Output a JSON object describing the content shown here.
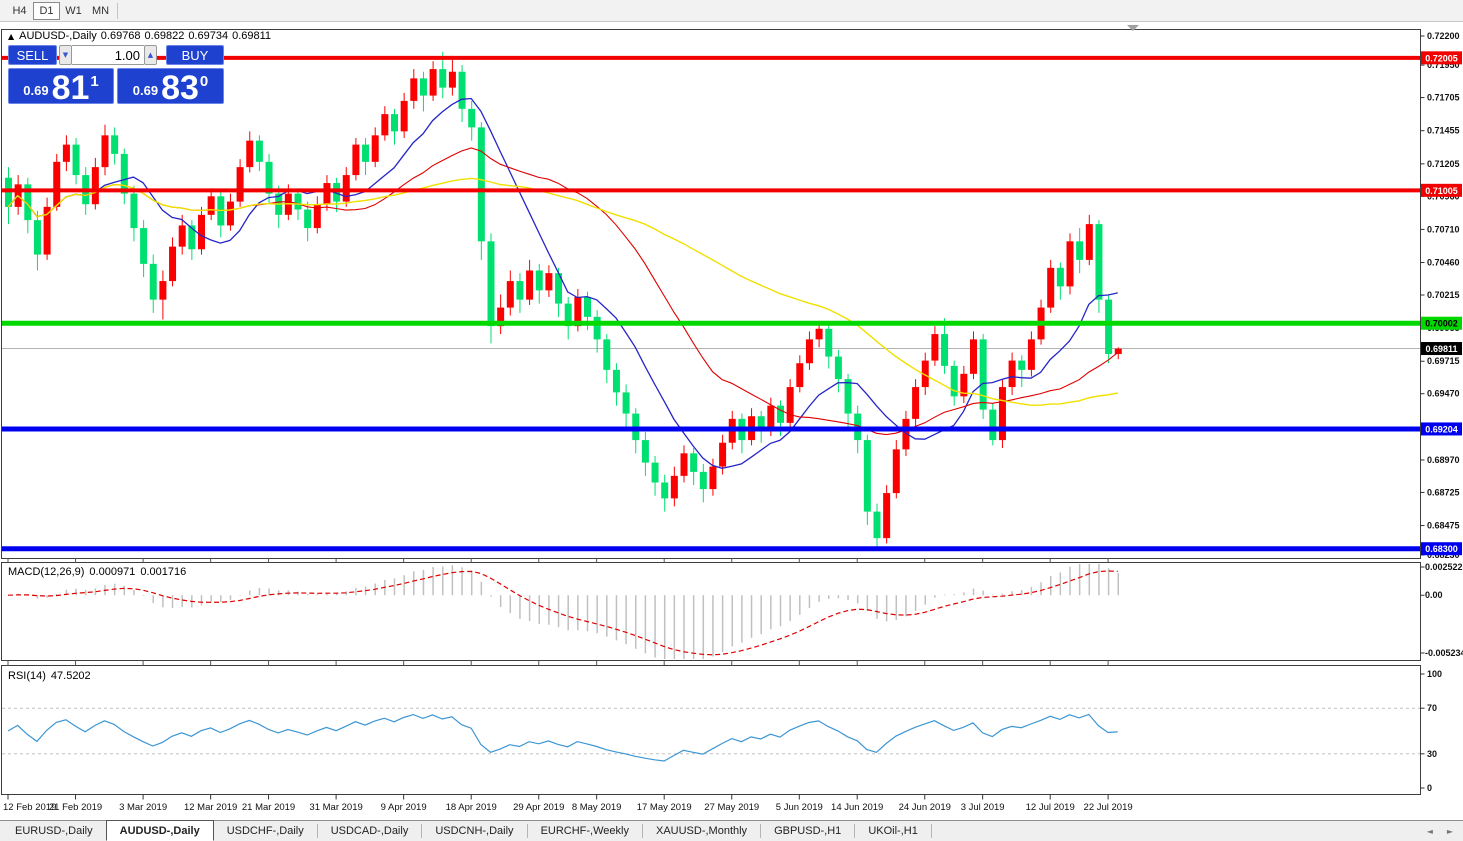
{
  "toolbar": {
    "timeframes": [
      {
        "label": "H4",
        "active": false
      },
      {
        "label": "D1",
        "active": true
      },
      {
        "label": "W1",
        "active": false
      },
      {
        "label": "MN",
        "active": false
      }
    ]
  },
  "icons": {
    "collapse": "▲",
    "spin_down": "▼",
    "spin_up": "▲",
    "tab_scroll_left": "◄",
    "tab_scroll_right": "►",
    "chart_shift_marker": "▼"
  },
  "chart_header": {
    "symbol": "AUDUSD-,Daily",
    "open": "0.69768",
    "high": "0.69822",
    "low": "0.69734",
    "close": "0.69811"
  },
  "trade_panel": {
    "sell_label": "SELL",
    "buy_label": "BUY",
    "volume": "1.00",
    "sell_price_small": "0.69",
    "sell_price_big": "81",
    "sell_price_sup": "1",
    "buy_price_small": "0.69",
    "buy_price_big": "83",
    "buy_price_sup": "0"
  },
  "price_axis": {
    "labels": [
      "0.72200",
      "0.71950",
      "0.71705",
      "0.71455",
      "0.71205",
      "0.70960",
      "0.70710",
      "0.70460",
      "0.70215",
      "0.69965",
      "0.69715",
      "0.69470",
      "0.68970",
      "0.68725",
      "0.68475",
      "0.68230"
    ],
    "badges": [
      {
        "text": "0.72005",
        "price": 0.72005,
        "type": "resistance-level",
        "bg": "#f20000",
        "fg": "#ffffff"
      },
      {
        "text": "0.71005",
        "price": 0.71005,
        "type": "resistance-level",
        "bg": "#f20000",
        "fg": "#ffffff"
      },
      {
        "text": "0.70002",
        "price": 0.70002,
        "type": "pivot-level",
        "bg": "#00d800",
        "fg": "#000000"
      },
      {
        "text": "0.69811",
        "price": 0.69811,
        "type": "current-price",
        "bg": "#000000",
        "fg": "#ffffff"
      },
      {
        "text": "0.69204",
        "price": 0.69204,
        "type": "support-level",
        "bg": "#0000f0",
        "fg": "#ffffff"
      },
      {
        "text": "0.68300",
        "price": 0.683,
        "type": "support-level",
        "bg": "#0000f0",
        "fg": "#ffffff"
      }
    ]
  },
  "levels": {
    "current_price": 0.69811,
    "horizontal_lines": [
      {
        "price": 0.72005,
        "color": "#f20000",
        "width": 4
      },
      {
        "price": 0.71005,
        "color": "#f20000",
        "width": 4
      },
      {
        "price": 0.70002,
        "color": "#00d800",
        "width": 5
      },
      {
        "price": 0.69204,
        "color": "#0000f0",
        "width": 5
      },
      {
        "price": 0.683,
        "color": "#0000f0",
        "width": 5
      }
    ]
  },
  "macd_panel": {
    "label": "MACD(12,26,9)",
    "main_value": "0.000971",
    "signal_value": "0.001716",
    "axis_labels": [
      "0.002522",
      "0.00",
      "-0.005234"
    ]
  },
  "rsi_panel": {
    "label": "RSI(14)",
    "value": "47.5202",
    "axis_labels": [
      "100",
      "70",
      "30",
      "0"
    ],
    "level_high": 70,
    "level_low": 30
  },
  "time_axis": {
    "labels": [
      "12 Feb 2019",
      "21 Feb 2019",
      "3 Mar 2019",
      "12 Mar 2019",
      "21 Mar 2019",
      "31 Mar 2019",
      "9 Apr 2019",
      "18 Apr 2019",
      "29 Apr 2019",
      "8 May 2019",
      "17 May 2019",
      "27 May 2019",
      "5 Jun 2019",
      "14 Jun 2019",
      "24 Jun 2019",
      "3 Jul 2019",
      "12 Jul 2019",
      "22 Jul 2019"
    ],
    "bar_index": [
      0,
      7,
      14,
      21,
      27,
      34,
      41,
      48,
      55,
      61,
      68,
      75,
      82,
      88,
      95,
      101,
      108,
      114
    ]
  },
  "tabs": {
    "items": [
      "EURUSD-,Daily",
      "AUDUSD-,Daily",
      "USDCHF-,Daily",
      "USDCAD-,Daily",
      "USDCNH-,Daily",
      "EURCHF-,Weekly",
      "XAUUSD-,Monthly",
      "GBPUSD-,H1",
      "UKOil-,H1"
    ],
    "active": "AUDUSD-,Daily"
  },
  "chart_data": {
    "type": "candlestick",
    "symbol": "AUDUSD",
    "timeframe": "Daily",
    "price_range": {
      "top": 0.72215,
      "bottom": 0.6823
    },
    "macd": {
      "fast": 12,
      "slow": 26,
      "signal": 9,
      "range": {
        "top": 0.002522,
        "bottom": -0.005234
      }
    },
    "rsi": {
      "period": 14,
      "range": [
        0,
        100
      ]
    },
    "moving_averages": [
      {
        "period": 10,
        "color": "#2525c8",
        "width": 1.3
      },
      {
        "period": 25,
        "color": "#e00000",
        "width": 1.1
      },
      {
        "period": 50,
        "color": "#f0e000",
        "width": 1.4
      }
    ],
    "colors": {
      "up": "#fa0000",
      "down": "#00e070",
      "histogram": "#c0c0c0",
      "macd_signal": "#e00000",
      "rsi_line": "#3c96d4",
      "current_price_line": "#b4b4b4",
      "level_dashed": "#c0c0c0"
    },
    "candles": [
      [
        0.711,
        0.7118,
        0.7075,
        0.7088
      ],
      [
        0.7088,
        0.7112,
        0.7082,
        0.7105
      ],
      [
        0.7105,
        0.711,
        0.7068,
        0.7078
      ],
      [
        0.7078,
        0.7085,
        0.704,
        0.7052
      ],
      [
        0.7052,
        0.7095,
        0.7048,
        0.7088
      ],
      [
        0.7088,
        0.7128,
        0.7085,
        0.7122
      ],
      [
        0.7122,
        0.7142,
        0.7115,
        0.7135
      ],
      [
        0.7135,
        0.714,
        0.7105,
        0.7112
      ],
      [
        0.7112,
        0.7118,
        0.7082,
        0.709
      ],
      [
        0.709,
        0.7125,
        0.7086,
        0.7118
      ],
      [
        0.7118,
        0.715,
        0.7112,
        0.7142
      ],
      [
        0.7142,
        0.7148,
        0.712,
        0.7128
      ],
      [
        0.7128,
        0.7132,
        0.709,
        0.7098
      ],
      [
        0.7098,
        0.7104,
        0.7062,
        0.7072
      ],
      [
        0.7072,
        0.7078,
        0.7035,
        0.7045
      ],
      [
        0.7045,
        0.7052,
        0.7008,
        0.7018
      ],
      [
        0.7018,
        0.704,
        0.7003,
        0.7032
      ],
      [
        0.7032,
        0.7065,
        0.7028,
        0.7058
      ],
      [
        0.7058,
        0.7082,
        0.7052,
        0.7074
      ],
      [
        0.7074,
        0.7078,
        0.7048,
        0.7056
      ],
      [
        0.7056,
        0.7088,
        0.7052,
        0.7082
      ],
      [
        0.7082,
        0.7102,
        0.7078,
        0.7096
      ],
      [
        0.7096,
        0.71,
        0.7065,
        0.7074
      ],
      [
        0.7074,
        0.7098,
        0.707,
        0.7092
      ],
      [
        0.7092,
        0.7124,
        0.7088,
        0.7118
      ],
      [
        0.7118,
        0.7145,
        0.7114,
        0.7138
      ],
      [
        0.7138,
        0.7142,
        0.7115,
        0.7122
      ],
      [
        0.7122,
        0.7128,
        0.709,
        0.7098
      ],
      [
        0.7098,
        0.7104,
        0.7072,
        0.7082
      ],
      [
        0.7082,
        0.7105,
        0.7078,
        0.7098
      ],
      [
        0.7098,
        0.7102,
        0.7078,
        0.7086
      ],
      [
        0.7086,
        0.7092,
        0.7062,
        0.7072
      ],
      [
        0.7072,
        0.7096,
        0.7068,
        0.709
      ],
      [
        0.709,
        0.7112,
        0.7085,
        0.7106
      ],
      [
        0.7106,
        0.711,
        0.7084,
        0.7092
      ],
      [
        0.7092,
        0.7118,
        0.7088,
        0.7112
      ],
      [
        0.7112,
        0.714,
        0.7108,
        0.7135
      ],
      [
        0.7135,
        0.714,
        0.7112,
        0.7122
      ],
      [
        0.7122,
        0.7148,
        0.7118,
        0.7142
      ],
      [
        0.7142,
        0.7164,
        0.7138,
        0.7158
      ],
      [
        0.7158,
        0.7162,
        0.7135,
        0.7145
      ],
      [
        0.7145,
        0.7174,
        0.714,
        0.7168
      ],
      [
        0.7168,
        0.7192,
        0.7162,
        0.7185
      ],
      [
        0.7185,
        0.719,
        0.716,
        0.7172
      ],
      [
        0.7172,
        0.7198,
        0.7168,
        0.7192
      ],
      [
        0.7192,
        0.7205,
        0.717,
        0.7178
      ],
      [
        0.7178,
        0.7202,
        0.7172,
        0.719
      ],
      [
        0.719,
        0.7195,
        0.7152,
        0.7162
      ],
      [
        0.7162,
        0.7168,
        0.7138,
        0.7148
      ],
      [
        0.7148,
        0.7152,
        0.7048,
        0.7062
      ],
      [
        0.7062,
        0.7068,
        0.6985,
        0.6998
      ],
      [
        0.6998,
        0.7022,
        0.6992,
        0.7012
      ],
      [
        0.7012,
        0.704,
        0.7006,
        0.7032
      ],
      [
        0.7032,
        0.7038,
        0.7008,
        0.7018
      ],
      [
        0.7018,
        0.7048,
        0.7014,
        0.704
      ],
      [
        0.704,
        0.7045,
        0.7015,
        0.7025
      ],
      [
        0.7025,
        0.7044,
        0.702,
        0.7038
      ],
      [
        0.7038,
        0.7042,
        0.7005,
        0.7015
      ],
      [
        0.7015,
        0.702,
        0.6988,
        0.6998
      ],
      [
        0.6998,
        0.7026,
        0.6994,
        0.702
      ],
      [
        0.702,
        0.7024,
        0.6995,
        0.7005
      ],
      [
        0.7005,
        0.701,
        0.6978,
        0.6988
      ],
      [
        0.6988,
        0.6992,
        0.6955,
        0.6965
      ],
      [
        0.6965,
        0.697,
        0.6938,
        0.6948
      ],
      [
        0.6948,
        0.6954,
        0.6922,
        0.6932
      ],
      [
        0.6932,
        0.6936,
        0.6902,
        0.6912
      ],
      [
        0.6912,
        0.6918,
        0.6885,
        0.6895
      ],
      [
        0.6895,
        0.69,
        0.687,
        0.688
      ],
      [
        0.688,
        0.6886,
        0.6858,
        0.6868
      ],
      [
        0.6868,
        0.6892,
        0.6862,
        0.6885
      ],
      [
        0.6885,
        0.6908,
        0.688,
        0.6902
      ],
      [
        0.6902,
        0.6906,
        0.6878,
        0.6888
      ],
      [
        0.6888,
        0.6894,
        0.6865,
        0.6875
      ],
      [
        0.6875,
        0.6898,
        0.687,
        0.6892
      ],
      [
        0.6892,
        0.6916,
        0.6886,
        0.691
      ],
      [
        0.691,
        0.6934,
        0.6905,
        0.6928
      ],
      [
        0.6928,
        0.6932,
        0.6902,
        0.6912
      ],
      [
        0.6912,
        0.6936,
        0.6908,
        0.693
      ],
      [
        0.693,
        0.6934,
        0.691,
        0.692
      ],
      [
        0.692,
        0.6944,
        0.6915,
        0.6938
      ],
      [
        0.6938,
        0.6942,
        0.6915,
        0.6925
      ],
      [
        0.6925,
        0.6958,
        0.692,
        0.6952
      ],
      [
        0.6952,
        0.6976,
        0.6948,
        0.697
      ],
      [
        0.697,
        0.6994,
        0.6965,
        0.6988
      ],
      [
        0.6988,
        0.7002,
        0.6982,
        0.6996
      ],
      [
        0.6996,
        0.7,
        0.6966,
        0.6975
      ],
      [
        0.6975,
        0.698,
        0.6948,
        0.6958
      ],
      [
        0.6958,
        0.6962,
        0.6922,
        0.6932
      ],
      [
        0.6932,
        0.6938,
        0.6902,
        0.6912
      ],
      [
        0.6912,
        0.6916,
        0.6848,
        0.6858
      ],
      [
        0.6858,
        0.6864,
        0.683,
        0.6838
      ],
      [
        0.6838,
        0.6878,
        0.6834,
        0.6872
      ],
      [
        0.6872,
        0.6912,
        0.6868,
        0.6905
      ],
      [
        0.6905,
        0.6934,
        0.69,
        0.6928
      ],
      [
        0.6928,
        0.6958,
        0.6922,
        0.6952
      ],
      [
        0.6952,
        0.6978,
        0.6946,
        0.6972
      ],
      [
        0.6972,
        0.6998,
        0.6968,
        0.6992
      ],
      [
        0.6992,
        0.7004,
        0.6962,
        0.6968
      ],
      [
        0.6968,
        0.6972,
        0.6938,
        0.6945
      ],
      [
        0.6945,
        0.6968,
        0.694,
        0.6962
      ],
      [
        0.6962,
        0.6994,
        0.6958,
        0.6988
      ],
      [
        0.6988,
        0.6992,
        0.6928,
        0.6935
      ],
      [
        0.6935,
        0.694,
        0.6908,
        0.6912
      ],
      [
        0.6912,
        0.6958,
        0.6906,
        0.6952
      ],
      [
        0.6952,
        0.6978,
        0.6946,
        0.6972
      ],
      [
        0.6972,
        0.6976,
        0.6952,
        0.6965
      ],
      [
        0.6965,
        0.6994,
        0.696,
        0.6988
      ],
      [
        0.6988,
        0.7018,
        0.6984,
        0.7012
      ],
      [
        0.7012,
        0.7048,
        0.7008,
        0.7042
      ],
      [
        0.7042,
        0.7046,
        0.7018,
        0.7028
      ],
      [
        0.7028,
        0.7068,
        0.7022,
        0.7062
      ],
      [
        0.7062,
        0.7072,
        0.7038,
        0.7048
      ],
      [
        0.7048,
        0.7082,
        0.7044,
        0.7075
      ],
      [
        0.7075,
        0.7078,
        0.7008,
        0.7018
      ],
      [
        0.7018,
        0.7022,
        0.697,
        0.6977
      ],
      [
        0.6977,
        0.6982,
        0.6973,
        0.6981
      ]
    ]
  }
}
